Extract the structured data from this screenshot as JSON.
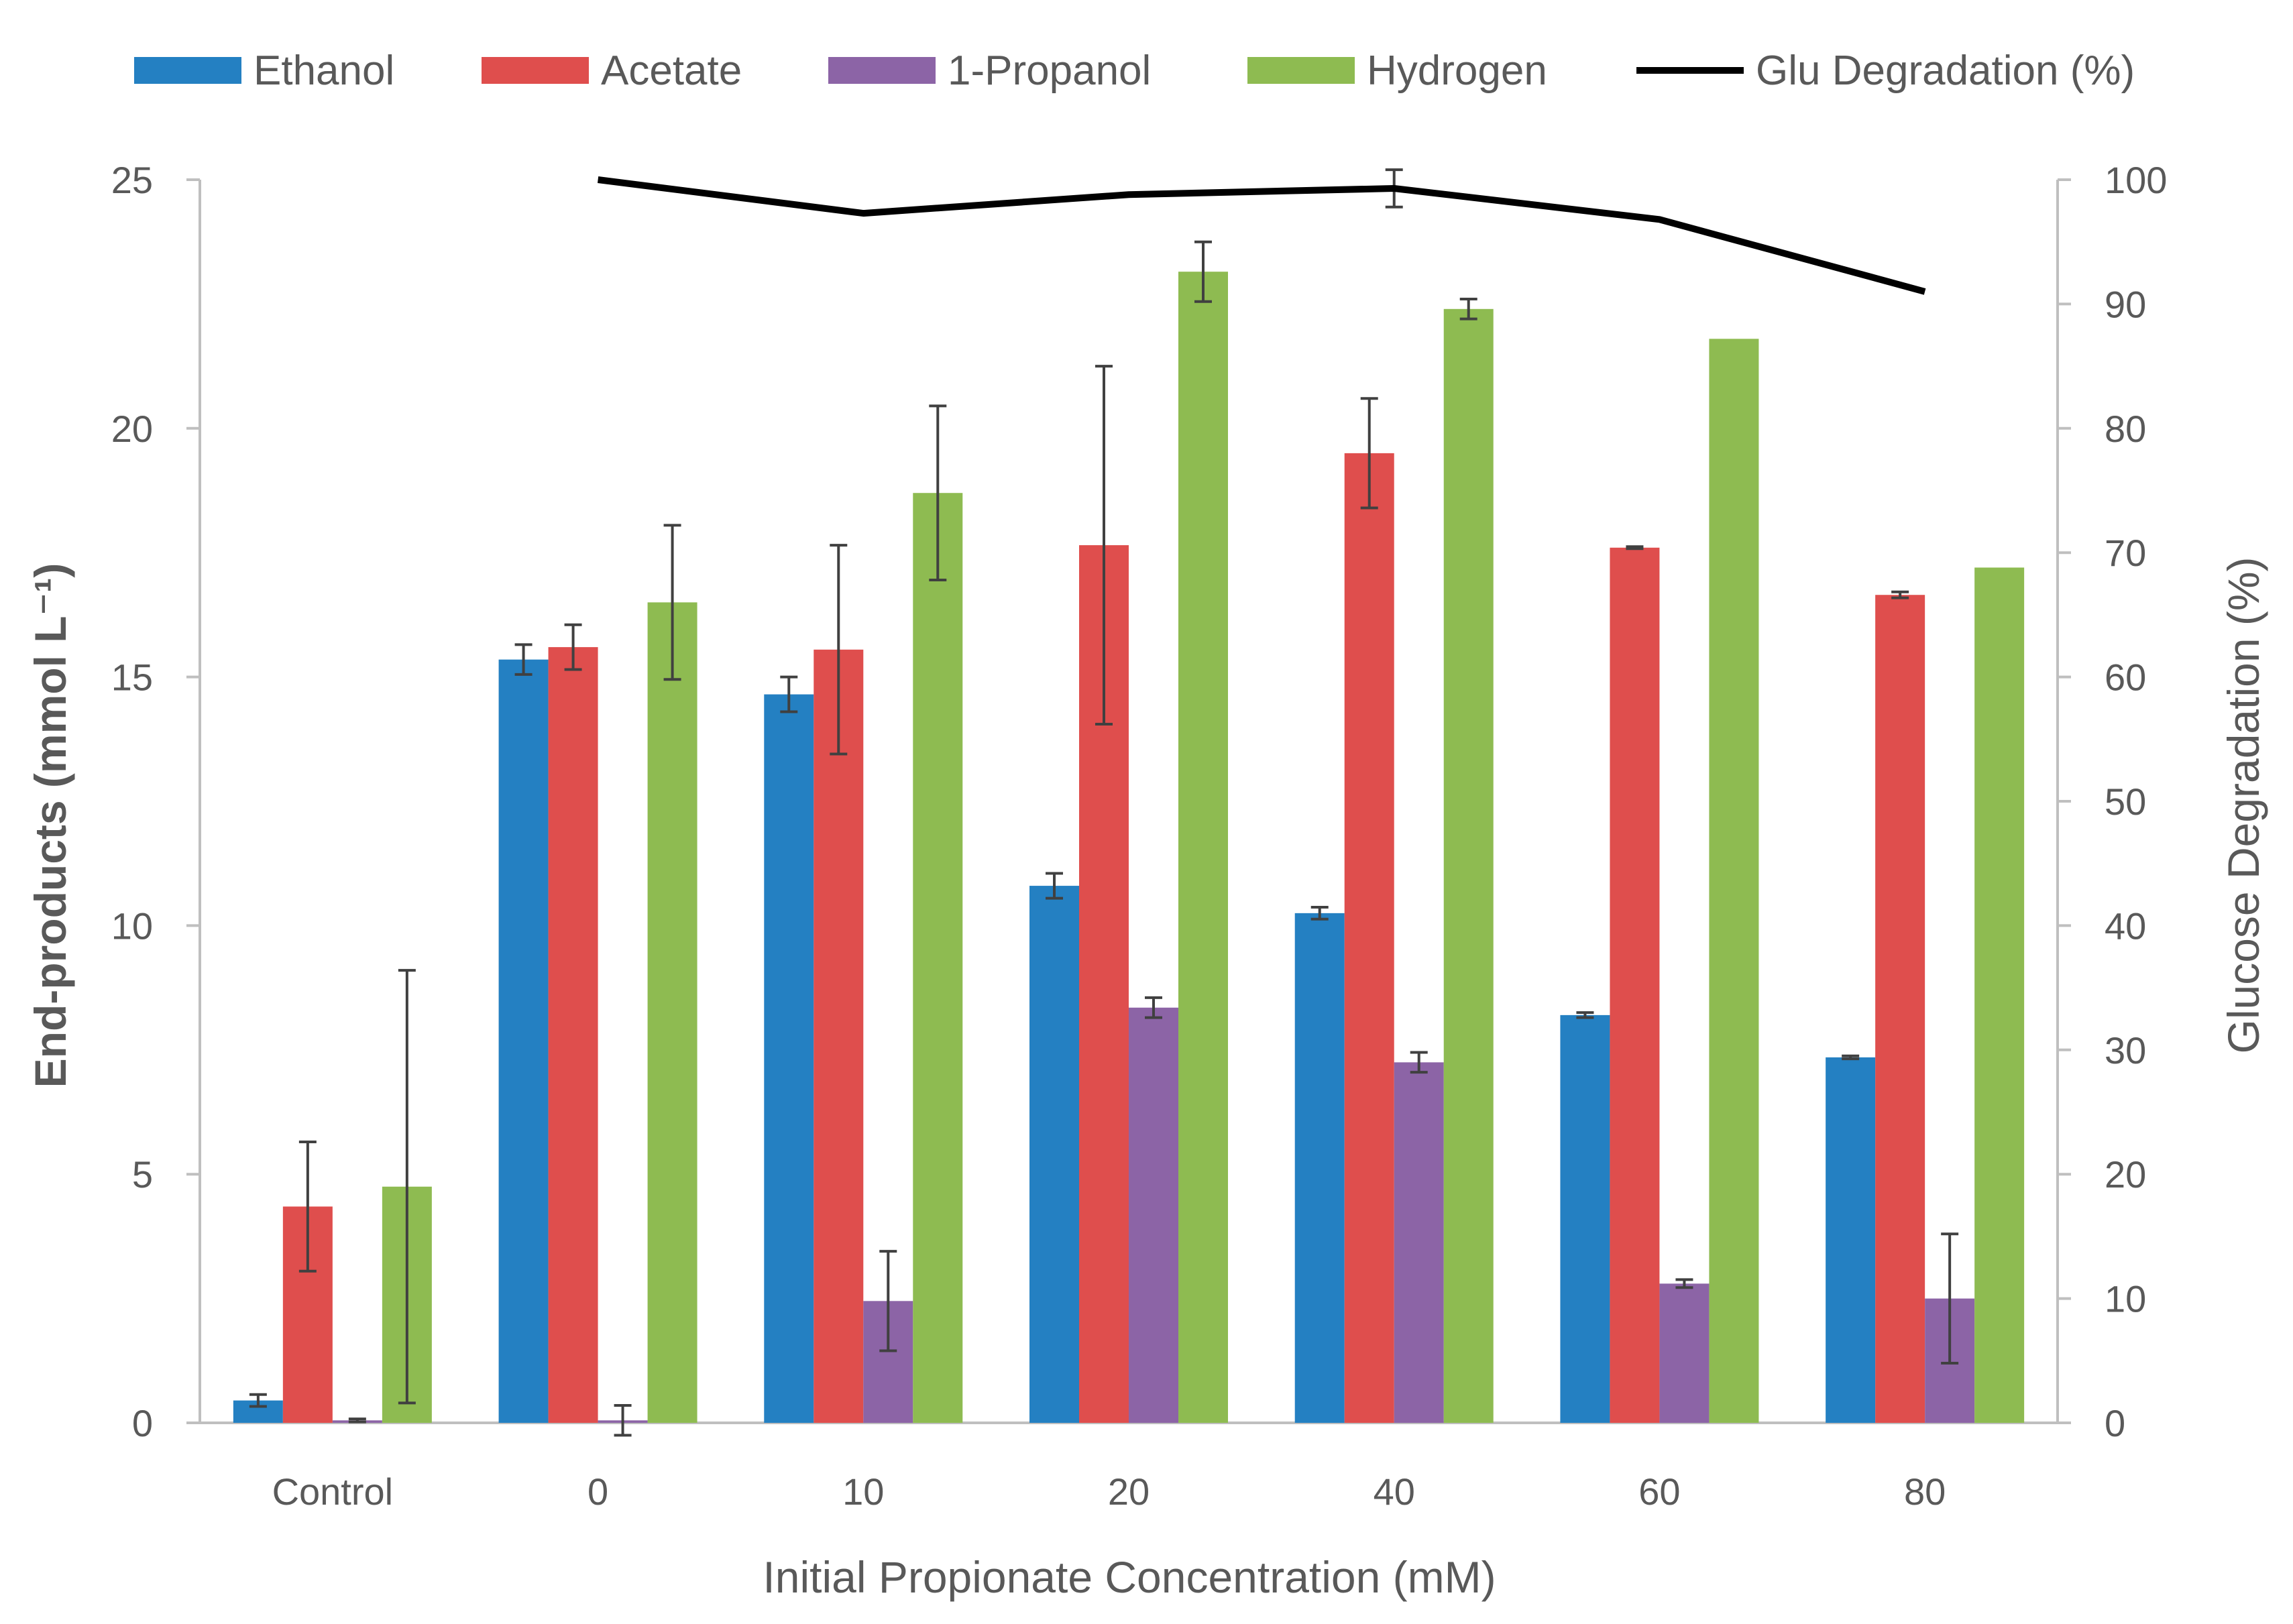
{
  "chart_data": {
    "type": "bar",
    "title": "",
    "xlabel": "Initial Propionate Concentration (mM)",
    "ylabel": "End-products (mmol L⁻¹)",
    "y2label": "Glucose Degradation (%)",
    "ylim": [
      0,
      25
    ],
    "y2lim": [
      0,
      100
    ],
    "yticks": [
      "0",
      "5",
      "10",
      "15",
      "20",
      "25"
    ],
    "y2ticks": [
      "0",
      "10",
      "20",
      "30",
      "40",
      "50",
      "60",
      "70",
      "80",
      "90",
      "100"
    ],
    "categories": [
      "Control",
      "0",
      "10",
      "20",
      "40",
      "60",
      "80"
    ],
    "legend_position": "top",
    "series": [
      {
        "name": "Ethanol",
        "color": "#2480C2",
        "kind": "bar",
        "axis": "left",
        "values": [
          0.45,
          15.35,
          14.65,
          10.8,
          10.25,
          8.2,
          7.35
        ],
        "errors": [
          0.12,
          0.3,
          0.35,
          0.25,
          0.12,
          0.05,
          0.03
        ]
      },
      {
        "name": "Acetate",
        "color": "#DF4E4D",
        "kind": "bar",
        "axis": "left",
        "values": [
          4.35,
          15.6,
          15.55,
          17.65,
          19.5,
          17.6,
          16.65
        ],
        "errors": [
          1.3,
          0.45,
          2.1,
          3.6,
          1.1,
          0.02,
          0.06
        ]
      },
      {
        "name": "1-Propanol",
        "color": "#8C64A6",
        "kind": "bar",
        "axis": "left",
        "values": [
          0.05,
          0.05,
          2.45,
          8.35,
          7.25,
          2.8,
          2.5
        ],
        "errors": [
          0.03,
          0.3,
          1.0,
          0.2,
          0.2,
          0.08,
          1.3
        ]
      },
      {
        "name": "Hydrogen",
        "color": "#8EBB51",
        "kind": "bar",
        "axis": "left",
        "values": [
          4.75,
          16.5,
          18.7,
          23.15,
          22.4,
          21.8,
          17.2
        ],
        "errors": [
          4.35,
          1.55,
          1.75,
          0.6,
          0.2,
          0,
          0
        ]
      },
      {
        "name": "Glu Degradation (%)",
        "color": "#000000",
        "kind": "line",
        "axis": "right",
        "values": [
          null,
          100,
          97.3,
          98.8,
          99.3,
          96.8,
          91.0
        ],
        "errors": [
          0,
          0,
          0,
          0,
          1.5,
          0,
          0
        ]
      }
    ]
  }
}
